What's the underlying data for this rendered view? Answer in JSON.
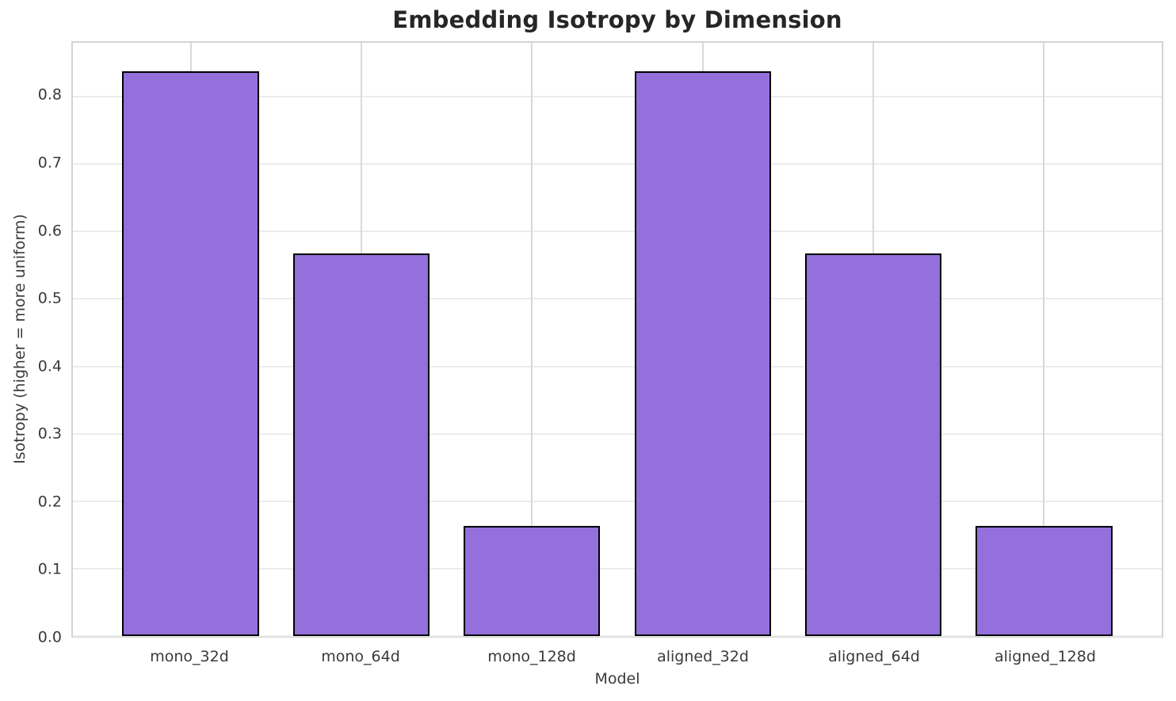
{
  "chart_data": {
    "type": "bar",
    "title": "Embedding Isotropy by Dimension",
    "xlabel": "Model",
    "ylabel": "Isotropy (higher = more uniform)",
    "categories": [
      "mono_32d",
      "mono_64d",
      "mono_128d",
      "aligned_32d",
      "aligned_64d",
      "aligned_128d"
    ],
    "values": [
      0.838,
      0.567,
      0.163,
      0.838,
      0.567,
      0.163
    ],
    "ylim": [
      0,
      0.88
    ],
    "yticks": [
      0.0,
      0.1,
      0.2,
      0.3,
      0.4,
      0.5,
      0.6,
      0.7,
      0.8
    ],
    "ytick_format_decimals": 1,
    "xlim": [
      -0.69,
      5.69
    ],
    "bar_width_units": 0.8,
    "grid": true,
    "legend": false,
    "colors": {
      "background": "#ffffff",
      "bar_fill": "#9370DB",
      "bar_edge": "#000000",
      "grid_h": "#ececec",
      "grid_v": "#d9d9d9",
      "spine": "#d4d4d4",
      "title_text": "#262626",
      "label_text": "#3a3a3a",
      "tick_text": "#3a3a3a"
    }
  }
}
